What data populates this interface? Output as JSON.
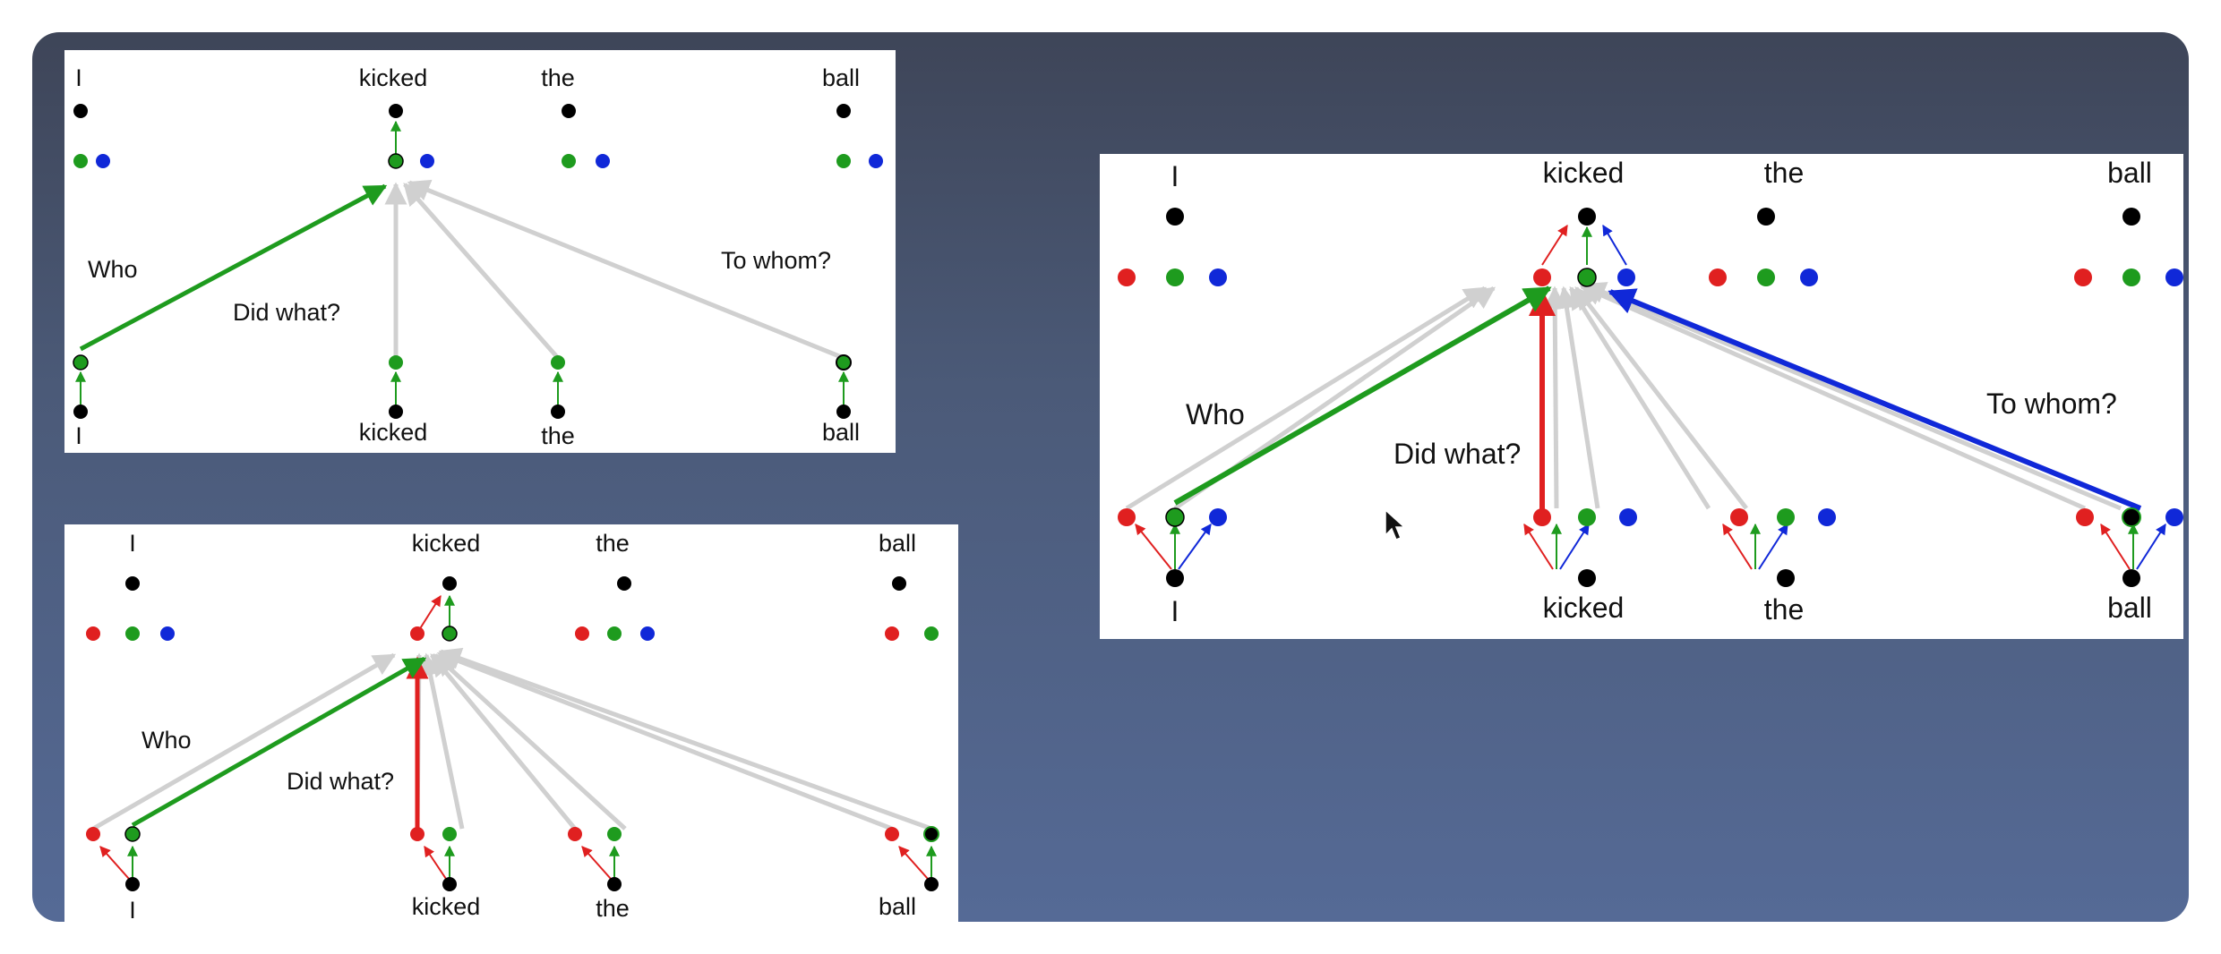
{
  "colors": {
    "red": "#e02020",
    "green": "#1e9b1e",
    "blue": "#1028d8",
    "black": "#000000",
    "gray_arrow": "#d0d0d0"
  },
  "panels": [
    {
      "words": [
        "I",
        "kicked",
        "the",
        "ball"
      ],
      "heads": [
        "green",
        "blue"
      ],
      "annotations": [
        "Who",
        "Did what?",
        "To whom?"
      ]
    },
    {
      "words": [
        "I",
        "kicked",
        "the",
        "ball"
      ],
      "heads": [
        "red",
        "green",
        "blue"
      ],
      "annotations": [
        "Who",
        "Did what?"
      ]
    },
    {
      "words": [
        "I",
        "kicked",
        "the",
        "ball"
      ],
      "heads": [
        "red",
        "green",
        "blue"
      ],
      "annotations": [
        "Who",
        "Did what?",
        "To whom?"
      ]
    }
  ]
}
